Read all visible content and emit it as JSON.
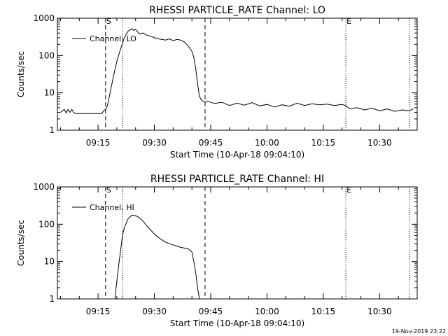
{
  "footer_timestamp": "19-Nov-2019 23:22",
  "chart_data": [
    {
      "type": "line",
      "title": "RHESSI PARTICLE_RATE Channel: LO",
      "xlabel": "Start Time (10-Apr-18 09:04:10)",
      "ylabel": "Counts/sec",
      "yscale": "log",
      "ylim": [
        1,
        1000
      ],
      "xlim": [
        "09:04:10",
        "10:40:00"
      ],
      "x_ticks": [
        "09:15",
        "09:30",
        "09:45",
        "10:00",
        "10:15",
        "10:30"
      ],
      "y_ticks": [
        "1",
        "10",
        "100",
        "1000"
      ],
      "legend": {
        "label": "Channel: LO",
        "position": "top-left"
      },
      "markers": [
        {
          "label": "S",
          "time": "09:17:00",
          "style": "dashed"
        },
        {
          "time": "09:21:30",
          "style": "dotted"
        },
        {
          "time": "09:43:30",
          "style": "dashed"
        },
        {
          "label": "E",
          "time": "10:21:00",
          "style": "dotted"
        },
        {
          "time": "10:38:00",
          "style": "dotted"
        }
      ],
      "series": [
        {
          "x": [
            "09:05:00",
            "09:06:00",
            "09:06:30",
            "09:07:00",
            "09:07:30",
            "09:08:00",
            "09:08:30",
            "09:09:00",
            "09:10:00",
            "09:12:00",
            "09:14:00",
            "09:16:00",
            "09:16:30",
            "09:17:00",
            "09:17:30",
            "09:18:00",
            "09:19:00",
            "09:20:00",
            "09:21:00",
            "09:22:00",
            "09:23:00",
            "09:24:00",
            "09:24:30",
            "09:25:00",
            "09:26:00",
            "09:27:00",
            "09:28:00",
            "09:29:00",
            "09:30:00",
            "09:31:00",
            "09:32:00",
            "09:33:00",
            "09:34:00",
            "09:35:00",
            "09:36:00",
            "09:37:00",
            "09:38:00",
            "09:39:00",
            "09:40:00",
            "09:40:30",
            "09:41:00",
            "09:41:30",
            "09:42:00",
            "09:42:30",
            "09:43:00",
            "09:43:30",
            "09:44:00",
            "09:46:00",
            "09:48:00",
            "09:50:00",
            "09:52:00",
            "09:54:00",
            "09:56:00",
            "09:58:00",
            "10:00:00",
            "10:02:00",
            "10:04:00",
            "10:06:00",
            "10:08:00",
            "10:10:00",
            "10:12:00",
            "10:14:00",
            "10:16:00",
            "10:18:00",
            "10:20:00",
            "10:21:00",
            "10:22:00",
            "10:24:00",
            "10:26:00",
            "10:28:00",
            "10:30:00",
            "10:32:00",
            "10:34:00",
            "10:36:00",
            "10:38:00",
            "10:39:00"
          ],
          "y": [
            3,
            3.6,
            2.9,
            3.6,
            3,
            3.6,
            3,
            2.8,
            2.8,
            2.8,
            2.8,
            2.8,
            3.3,
            3.6,
            4.5,
            8,
            25,
            70,
            150,
            300,
            450,
            520,
            470,
            500,
            380,
            400,
            350,
            330,
            300,
            280,
            270,
            260,
            280,
            250,
            270,
            260,
            230,
            180,
            130,
            90,
            45,
            18,
            8,
            6.5,
            6,
            5.5,
            6,
            5.2,
            5.6,
            4.6,
            5.3,
            4.7,
            5.5,
            4.5,
            4.9,
            4.2,
            4.8,
            4.4,
            5.3,
            4.6,
            5.1,
            4.8,
            5,
            4.6,
            4.9,
            4.5,
            3.8,
            4,
            3.5,
            3.9,
            3.3,
            3.7,
            3.2,
            3.5,
            3.3,
            3.8
          ]
        }
      ]
    },
    {
      "type": "line",
      "title": "RHESSI PARTICLE_RATE Channel: HI",
      "xlabel": "Start Time (10-Apr-18 09:04:10)",
      "ylabel": "Counts/sec",
      "yscale": "log",
      "ylim": [
        1,
        1000
      ],
      "xlim": [
        "09:04:10",
        "10:40:00"
      ],
      "x_ticks": [
        "09:15",
        "09:30",
        "09:45",
        "10:00",
        "10:15",
        "10:30"
      ],
      "y_ticks": [
        "1",
        "10",
        "100",
        "1000"
      ],
      "legend": {
        "label": "Channel: HI",
        "position": "top-left"
      },
      "markers": [
        {
          "label": "S",
          "time": "09:17:00",
          "style": "dashed"
        },
        {
          "time": "09:21:30",
          "style": "dotted"
        },
        {
          "time": "09:43:30",
          "style": "dashed"
        },
        {
          "label": "E",
          "time": "10:21:00",
          "style": "dotted"
        },
        {
          "time": "10:38:00",
          "style": "dotted"
        }
      ],
      "series": [
        {
          "x": [
            "09:19:30",
            "09:20:00",
            "09:20:30",
            "09:21:00",
            "09:21:30",
            "09:22:00",
            "09:23:00",
            "09:24:00",
            "09:25:00",
            "09:26:00",
            "09:27:00",
            "09:28:00",
            "09:29:00",
            "09:30:00",
            "09:31:00",
            "09:32:00",
            "09:33:00",
            "09:34:00",
            "09:35:00",
            "09:36:00",
            "09:37:00",
            "09:38:00",
            "09:39:00",
            "09:40:00",
            "09:40:30",
            "09:41:00",
            "09:41:30",
            "09:42:00"
          ],
          "y": [
            1,
            3,
            8,
            20,
            50,
            80,
            140,
            175,
            170,
            150,
            120,
            90,
            70,
            55,
            45,
            38,
            33,
            30,
            28,
            26,
            24,
            23,
            22,
            18,
            10,
            5,
            2,
            1
          ]
        }
      ]
    }
  ]
}
